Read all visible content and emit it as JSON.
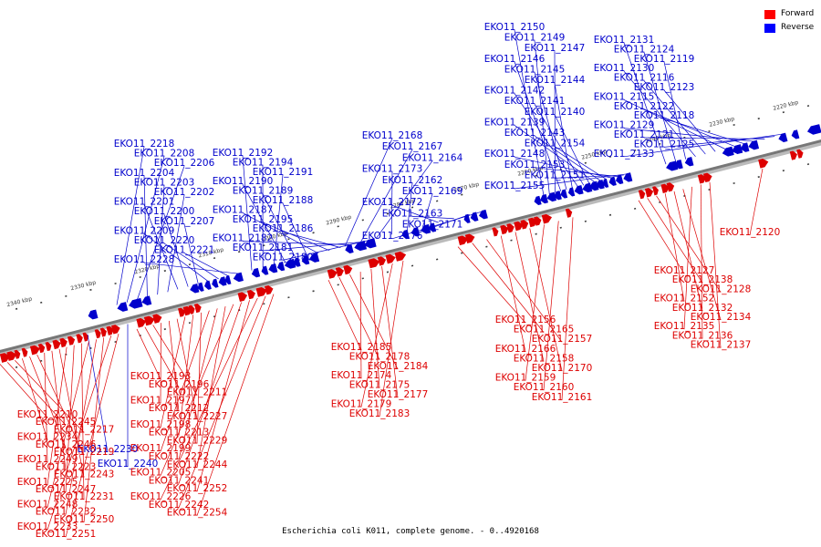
{
  "caption": "Escherichia coli K011, complete genome. - 0..4920168",
  "legend": [
    {
      "label": "Forward",
      "color": "#ff0000"
    },
    {
      "label": "Reverse",
      "color": "#0000ff"
    }
  ],
  "colors": {
    "forward": "#dd0000",
    "reverse": "#0000cc",
    "axis": "#777777"
  },
  "ticks": [
    "2220 kbp",
    "2230 kbp",
    "2240 kbp",
    "2250 kbp",
    "2260 kbp",
    "2270 kbp",
    "2280 kbp",
    "2290 kbp",
    "2300 kbp",
    "2310 kbp",
    "2320 kbp",
    "2330 kbp",
    "2340 kbp"
  ],
  "reverse_genes": [
    "EKO11_2150",
    "EKO11_2149",
    "EKO11_2147",
    "EKO11_2146",
    "EKO11_2145",
    "EKO11_2144",
    "EKO11_2142",
    "EKO11_2141",
    "EKO11_2140",
    "EKO11_2139",
    "EKO11_2143",
    "EKO11_2154",
    "EKO11_2148",
    "EKO11_2153",
    "EKO11_2151",
    "EKO11_2155",
    "EKO11_2131",
    "EKO11_2124",
    "EKO11_2119",
    "EKO11_2130",
    "EKO11_2116",
    "EKO11_2123",
    "EKO11_2115",
    "EKO11_2122",
    "EKO11_2118",
    "EKO11_2129",
    "EKO11_2121",
    "EKO11_2125",
    "EKO11_2133",
    "EKO11_2168",
    "EKO11_2167",
    "EKO11_2164",
    "EKO11_2173",
    "EKO11_2162",
    "EKO11_2169",
    "EKO11_2172",
    "EKO11_2163",
    "EKO11_2171",
    "EKO11_2176",
    "EKO11_2218",
    "EKO11_2208",
    "EKO11_2206",
    "EKO11_2204",
    "EKO11_2203",
    "EKO11_2202",
    "EKO11_2201",
    "EKO11_2200",
    "EKO11_2207",
    "EKO11_2209",
    "EKO11_2220",
    "EKO11_2221",
    "EKO11_2228",
    "EKO11_2192",
    "EKO11_2194",
    "EKO11_2191",
    "EKO11_2190",
    "EKO11_2189",
    "EKO11_2188",
    "EKO11_2187",
    "EKO11_2195",
    "EKO11_2186",
    "EKO11_2182",
    "EKO11_2181",
    "EKO11_2180",
    "EKO11_2230",
    "EKO11_2240"
  ],
  "forward_genes": [
    "EKO11_2120",
    "EKO11_2127",
    "EKO11_2138",
    "EKO11_2128",
    "EKO11_2152",
    "EKO11_2132",
    "EKO11_2134",
    "EKO11_2135",
    "EKO11_2136",
    "EKO11_2137",
    "EKO11_2156",
    "EKO11_2165",
    "EKO11_2157",
    "EKO11_2166",
    "EKO11_2158",
    "EKO11_2170",
    "EKO11_2159",
    "EKO11_2160",
    "EKO11_2161",
    "EKO11_2185",
    "EKO11_2178",
    "EKO11_2184",
    "EKO11_2174",
    "EKO11_2175",
    "EKO11_2177",
    "EKO11_2179",
    "EKO11_2183",
    "EKO11_2193",
    "EKO11_2196",
    "EKO11_2211",
    "EKO11_2197",
    "EKO11_2212",
    "EKO11_2227",
    "EKO11_2198",
    "EKO11_2213",
    "EKO11_2229",
    "EKO11_2199",
    "EKO11_2222",
    "EKO11_2244",
    "EKO11_2205",
    "EKO11_2241",
    "EKO11_2252",
    "EKO11_2226",
    "EKO11_2242",
    "EKO11_2254",
    "EKO11_2210",
    "EKO11_2245",
    "EKO11_2217",
    "EKO11_2234",
    "EKO11_2246",
    "EKO11_2219",
    "EKO11_2249",
    "EKO11_2223",
    "EKO11_2243",
    "EKO11_2225",
    "EKO11_2247",
    "EKO11_2231",
    "EKO11_2248",
    "EKO11_2232",
    "EKO11_2250",
    "EKO11_2233",
    "EKO11_2251"
  ]
}
